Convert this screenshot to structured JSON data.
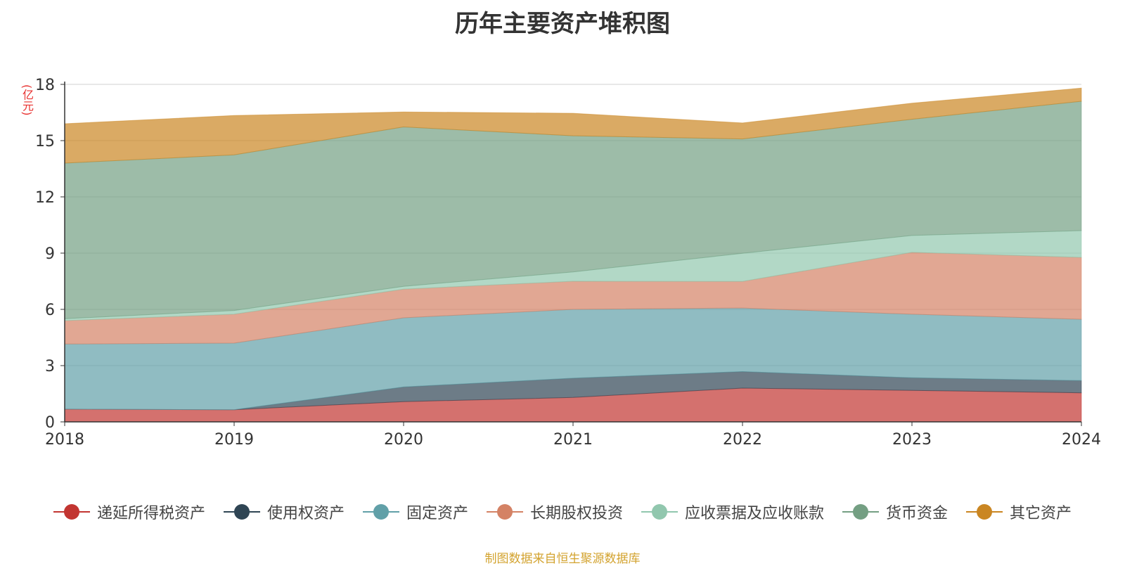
{
  "chart_data": {
    "type": "area",
    "stacked": true,
    "title": "历年主要资产堆积图",
    "ylabel": "(亿元)",
    "xlabel": "",
    "categories": [
      "2018",
      "2019",
      "2020",
      "2021",
      "2022",
      "2023",
      "2024"
    ],
    "ylim": [
      0,
      18
    ],
    "yticks": [
      0,
      3,
      6,
      9,
      12,
      15,
      18
    ],
    "grid": true,
    "legend_position": "bottom",
    "series": [
      {
        "name": "递延所得税资产",
        "color": "#c23531",
        "values": [
          0.68,
          0.65,
          1.08,
          1.3,
          1.8,
          1.68,
          1.55
        ]
      },
      {
        "name": "使用权资产",
        "color": "#2f4554",
        "values": [
          0.0,
          0.0,
          0.78,
          1.03,
          0.88,
          0.67,
          0.65
        ]
      },
      {
        "name": "固定资产",
        "color": "#61a0a8",
        "values": [
          3.47,
          3.55,
          3.69,
          3.67,
          3.39,
          3.39,
          3.27
        ]
      },
      {
        "name": "长期股权投资",
        "color": "#d48265",
        "values": [
          1.25,
          1.54,
          1.53,
          1.5,
          1.42,
          3.3,
          3.3
        ]
      },
      {
        "name": "应收票据及应收账款",
        "color": "#91c7ae",
        "values": [
          0.1,
          0.2,
          0.15,
          0.5,
          1.5,
          0.9,
          1.43
        ]
      },
      {
        "name": "货币资金",
        "color": "#749f83",
        "values": [
          8.3,
          8.3,
          8.5,
          7.26,
          6.1,
          6.2,
          6.9
        ]
      },
      {
        "name": "其它资产",
        "color": "#ca8622",
        "values": [
          2.1,
          2.1,
          0.8,
          1.2,
          0.85,
          0.86,
          0.7
        ]
      }
    ]
  },
  "footer": {
    "source": "制图数据来自恒生聚源数据库"
  }
}
